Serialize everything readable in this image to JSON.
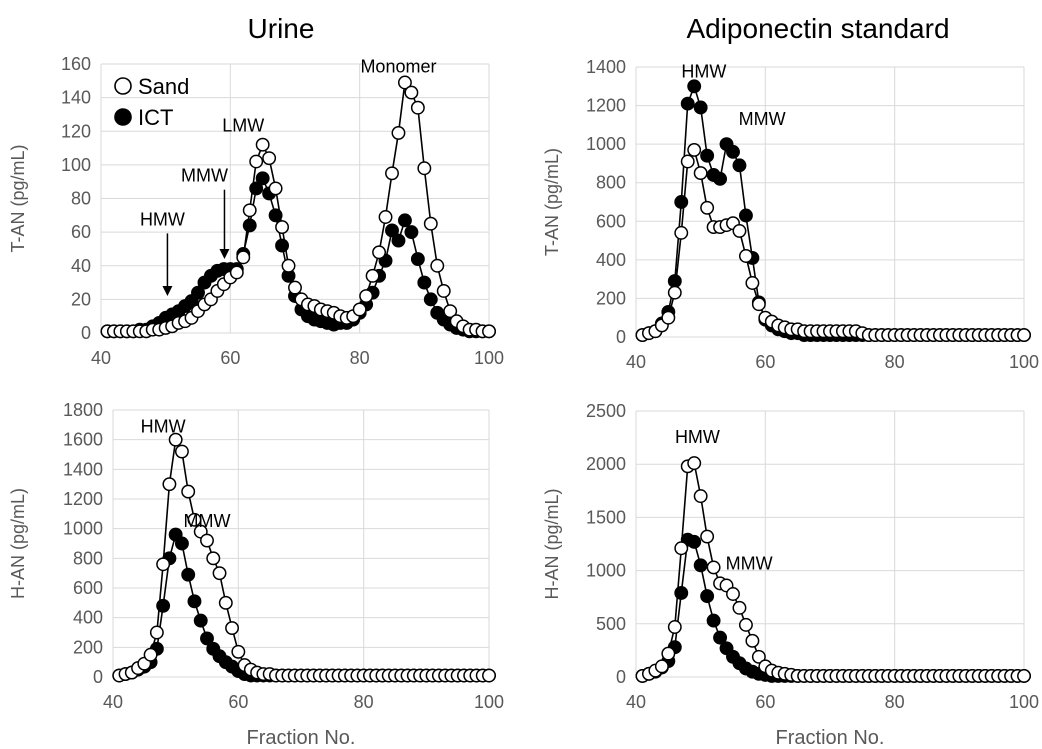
{
  "figure": {
    "column_titles": [
      "Urine",
      "Adiponectin standard"
    ],
    "legend": [
      {
        "label": "Sand",
        "marker": "open-circle"
      },
      {
        "label": "ICT",
        "marker": "filled-circle"
      }
    ],
    "colors": {
      "text": "#000000",
      "tick": "#595959",
      "grid": "#d9d9d9",
      "series": "#000000"
    }
  },
  "chart_data": [
    {
      "id": "urine-tan",
      "type": "scatter-line",
      "title": "Urine",
      "xlabel": "",
      "ylabel": "T-AN (pg/mL)",
      "xlim": [
        40,
        100
      ],
      "ylim": [
        0,
        160
      ],
      "xticks": [
        40,
        60,
        80,
        100
      ],
      "yticks": [
        0,
        20,
        40,
        60,
        80,
        100,
        120,
        140,
        160
      ],
      "grid": true,
      "legend": "top-left",
      "series": [
        {
          "name": "Sand",
          "marker": "open",
          "x_start": 41,
          "values": [
            1,
            1,
            1,
            1,
            1,
            1,
            1,
            2,
            2,
            3,
            4,
            6,
            7,
            9,
            13,
            17,
            20,
            25,
            29,
            33,
            36,
            45,
            73,
            102,
            112,
            104,
            86,
            63,
            40,
            27,
            20,
            17,
            16,
            14,
            13,
            12,
            10,
            9,
            10,
            14,
            22,
            34,
            48,
            69,
            95,
            119,
            149,
            143,
            134,
            98,
            65,
            40,
            25,
            13,
            7,
            4,
            2,
            2,
            1,
            1
          ],
          "x_end": 100
        },
        {
          "name": "ICT",
          "marker": "filled",
          "x_start": 41,
          "values": [
            1,
            1,
            1,
            1,
            1,
            2,
            2,
            4,
            6,
            9,
            11,
            13,
            16,
            19,
            24,
            30,
            34,
            37,
            38,
            38,
            38,
            47,
            64,
            86,
            92,
            83,
            70,
            52,
            34,
            22,
            14,
            10,
            8,
            7,
            6,
            5,
            6,
            6,
            8,
            12,
            17,
            24,
            34,
            43,
            61,
            55,
            67,
            60,
            44,
            30,
            20,
            12,
            8,
            5,
            3,
            2,
            1,
            1,
            1,
            1
          ],
          "x_end": 100
        }
      ],
      "annotations": [
        {
          "text": "HMW",
          "x": 49.5,
          "y": 64,
          "arrow_to_y": 22
        },
        {
          "text": "MMW",
          "x": 56,
          "y": 90,
          "arrow_to_y": 44
        },
        {
          "text": "LMW",
          "x": 62,
          "y": 120
        },
        {
          "text": "Monomer",
          "x": 86,
          "y": 155
        }
      ]
    },
    {
      "id": "standard-tan",
      "type": "scatter-line",
      "title": "Adiponectin standard",
      "xlabel": "",
      "ylabel": "T-AN (pg/mL)",
      "xlim": [
        40,
        100
      ],
      "ylim": [
        0,
        1400
      ],
      "xticks": [
        40,
        60,
        80,
        100
      ],
      "yticks": [
        0,
        200,
        400,
        600,
        800,
        1000,
        1200,
        1400
      ],
      "grid": true,
      "series": [
        {
          "name": "Sand",
          "marker": "open",
          "x_start": 41,
          "values": [
            10,
            20,
            30,
            60,
            100,
            230,
            540,
            910,
            970,
            850,
            670,
            570,
            570,
            580,
            590,
            550,
            420,
            280,
            170,
            100,
            80,
            60,
            50,
            40,
            40,
            30,
            30,
            30,
            30,
            30,
            30,
            30,
            30,
            30,
            20,
            10,
            10,
            10,
            10,
            10,
            10,
            10,
            10,
            10,
            10,
            10,
            10,
            10,
            10,
            10,
            10,
            10,
            10,
            10,
            10,
            10,
            10,
            10,
            10,
            10
          ],
          "x_end": 100
        },
        {
          "name": "ICT",
          "marker": "filled",
          "x_start": 41,
          "values": [
            10,
            20,
            30,
            70,
            130,
            290,
            700,
            1210,
            1300,
            1190,
            940,
            840,
            820,
            1000,
            960,
            890,
            630,
            410,
            180,
            90,
            60,
            40,
            30,
            20,
            20,
            10,
            10,
            10,
            10,
            10,
            10,
            10,
            10,
            10,
            10,
            10,
            10,
            10,
            10,
            10,
            10,
            10,
            10,
            10,
            10,
            10,
            10,
            10,
            10,
            10,
            10,
            10,
            10,
            10,
            10,
            10,
            10,
            10,
            10,
            10
          ],
          "x_end": 100
        }
      ],
      "annotations": [
        {
          "text": "HMW",
          "x": 50.5,
          "y": 1345
        },
        {
          "text": "MMW",
          "x": 59.5,
          "y": 1100
        }
      ]
    },
    {
      "id": "urine-han",
      "type": "scatter-line",
      "title": "",
      "xlabel": "Fraction No.",
      "ylabel": "H-AN (pg/mL)",
      "xlim": [
        40,
        100
      ],
      "ylim": [
        0,
        1800
      ],
      "xticks": [
        40,
        60,
        80,
        100
      ],
      "yticks": [
        0,
        200,
        400,
        600,
        800,
        1000,
        1200,
        1400,
        1600,
        1800
      ],
      "grid": true,
      "series": [
        {
          "name": "Sand",
          "marker": "open",
          "x_start": 41,
          "values": [
            10,
            20,
            30,
            60,
            90,
            150,
            300,
            760,
            1300,
            1600,
            1520,
            1250,
            1060,
            980,
            920,
            800,
            700,
            500,
            330,
            170,
            80,
            50,
            30,
            20,
            20,
            10,
            10,
            10,
            10,
            10,
            10,
            10,
            10,
            10,
            10,
            10,
            10,
            10,
            10,
            10,
            10,
            10,
            10,
            10,
            10,
            10,
            10,
            10,
            10,
            10,
            10,
            10,
            10,
            10,
            10,
            10,
            10,
            10,
            10,
            10
          ],
          "x_end": 100
        },
        {
          "name": "ICT",
          "marker": "filled",
          "x_start": 41,
          "values": [
            10,
            20,
            30,
            50,
            70,
            100,
            190,
            480,
            800,
            960,
            900,
            690,
            510,
            380,
            260,
            190,
            140,
            100,
            70,
            40,
            20,
            10,
            10,
            10,
            10,
            10,
            10,
            10,
            10,
            10,
            10,
            10,
            10,
            10,
            10,
            10,
            10,
            10,
            10,
            10,
            10,
            10,
            10,
            10,
            10,
            10,
            10,
            10,
            10,
            10,
            10,
            10,
            10,
            10,
            10,
            10,
            10,
            10,
            10,
            10
          ],
          "x_end": 100
        }
      ],
      "annotations": [
        {
          "text": "HMW",
          "x": 48,
          "y": 1650
        },
        {
          "text": "MMW",
          "x": 55,
          "y": 1010
        }
      ]
    },
    {
      "id": "standard-han",
      "type": "scatter-line",
      "title": "",
      "xlabel": "Fraction No.",
      "ylabel": "H-AN (pg/mL)",
      "xlim": [
        40,
        100
      ],
      "ylim": [
        0,
        2500
      ],
      "xticks": [
        40,
        60,
        80,
        100
      ],
      "yticks": [
        0,
        500,
        1000,
        1500,
        2000,
        2500
      ],
      "grid": true,
      "series": [
        {
          "name": "Sand",
          "marker": "open",
          "x_start": 41,
          "values": [
            10,
            30,
            60,
            100,
            220,
            470,
            1210,
            1980,
            2010,
            1700,
            1320,
            1030,
            880,
            860,
            780,
            650,
            490,
            340,
            190,
            100,
            60,
            40,
            30,
            20,
            10,
            10,
            10,
            10,
            10,
            10,
            10,
            10,
            10,
            10,
            10,
            10,
            10,
            10,
            10,
            10,
            10,
            10,
            10,
            10,
            10,
            10,
            10,
            10,
            10,
            10,
            10,
            10,
            10,
            10,
            10,
            10,
            10,
            10,
            10,
            10
          ],
          "x_end": 100
        },
        {
          "name": "ICT",
          "marker": "filled",
          "x_start": 41,
          "values": [
            10,
            30,
            50,
            90,
            150,
            280,
            790,
            1290,
            1270,
            1050,
            760,
            530,
            370,
            270,
            190,
            130,
            80,
            50,
            30,
            20,
            10,
            10,
            10,
            10,
            10,
            10,
            10,
            10,
            10,
            10,
            10,
            10,
            10,
            10,
            10,
            10,
            10,
            10,
            10,
            10,
            10,
            10,
            10,
            10,
            10,
            10,
            10,
            10,
            10,
            10,
            10,
            10,
            10,
            10,
            10,
            10,
            10,
            10,
            10,
            10
          ],
          "x_end": 100
        }
      ],
      "annotations": [
        {
          "text": "HMW",
          "x": 49.5,
          "y": 2200
        },
        {
          "text": "MMW",
          "x": 57.5,
          "y": 1010
        }
      ]
    }
  ]
}
